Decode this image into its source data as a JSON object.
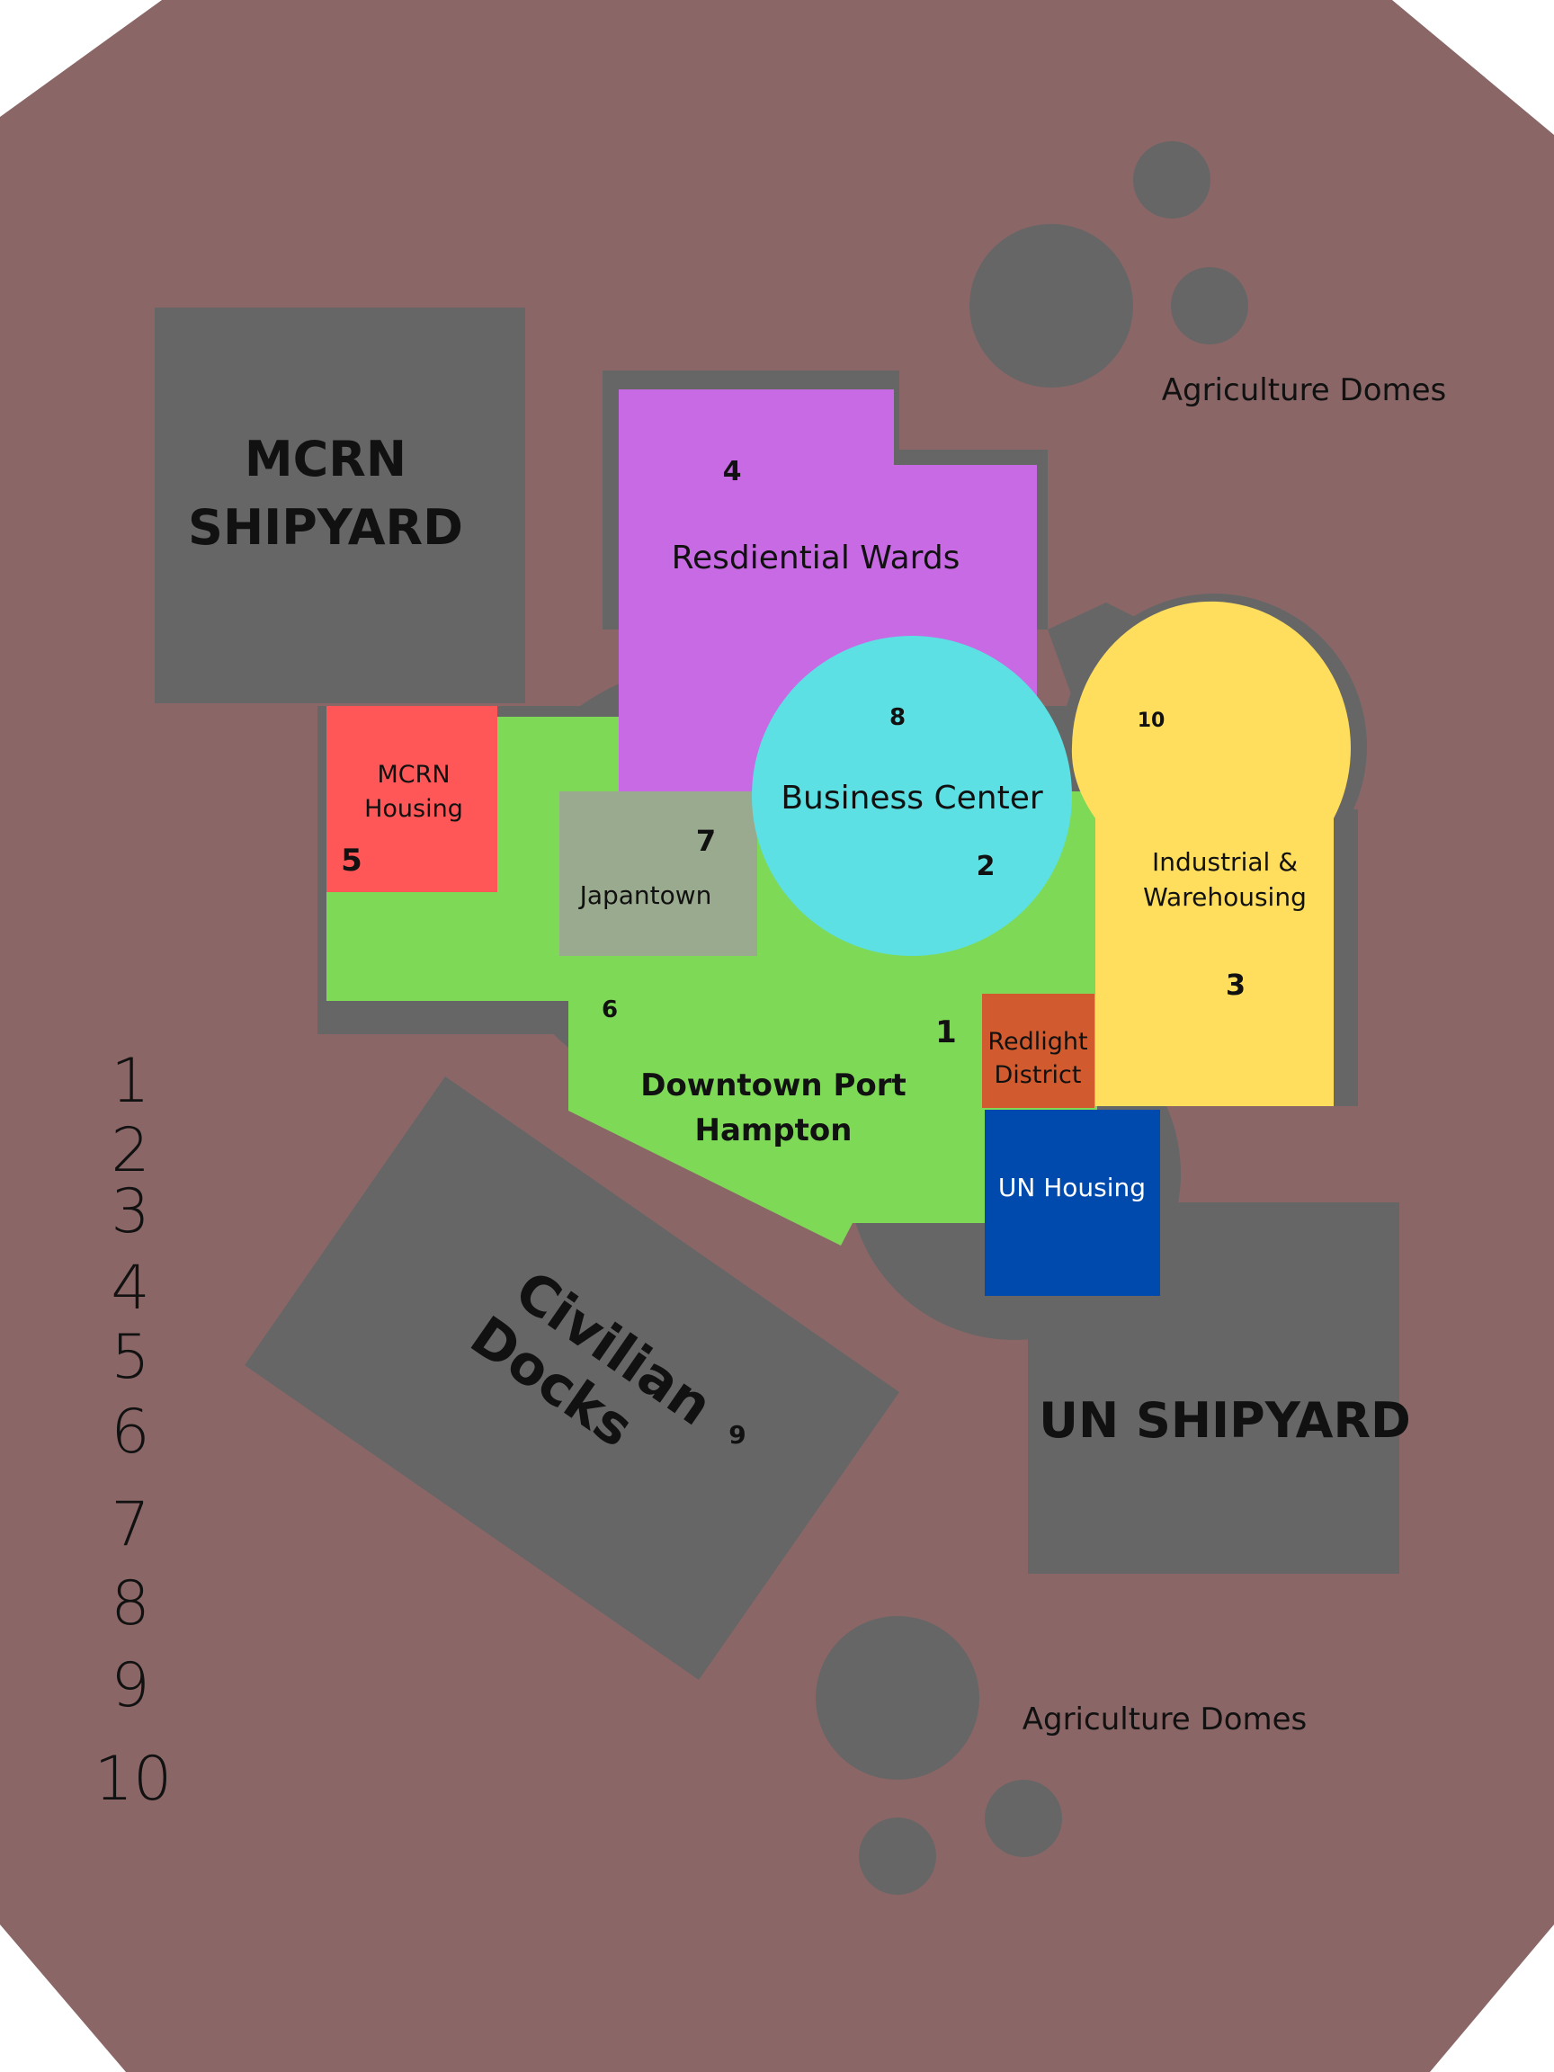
{
  "colors": {
    "page": "#ffffff",
    "station_hull": "#8a6766",
    "structure_gray": "#666666",
    "residential": "#c86ae4",
    "business": "#5ce0e3",
    "industrial": "#fede5c",
    "downtown": "#7ed957",
    "mcrn_housing": "#ff5757",
    "japantown": "#9aaa8e",
    "redlight": "#d15b2f",
    "un_housing": "#004aad",
    "text_dark": "#111111",
    "text_light": "#ffffff"
  },
  "areas": {
    "mcrn_shipyard": {
      "line1": "MCRN",
      "line2": "SHIPYARD"
    },
    "un_shipyard": {
      "label": "UN SHIPYARD"
    },
    "civilian_docks": {
      "line1": "Civilian",
      "line2": "Docks",
      "marker": "9"
    },
    "residential_wards": {
      "label": "Resdiential Wards",
      "marker": "4"
    },
    "business_center": {
      "label": "Business Center",
      "marker_top": "8",
      "marker_bottom": "2"
    },
    "industrial": {
      "line1": "Industrial &",
      "line2": "Warehousing",
      "marker_top": "10",
      "marker_bottom": "3"
    },
    "mcrn_housing": {
      "line1": "MCRN",
      "line2": "Housing",
      "marker": "5"
    },
    "japantown": {
      "label": "Japantown",
      "marker": "7"
    },
    "downtown": {
      "line1": "Downtown Port",
      "line2": "Hampton",
      "marker_left": "6",
      "marker_right": "1"
    },
    "redlight": {
      "line1": "Redlight",
      "line2": "District"
    },
    "un_housing": {
      "label": "UN Housing"
    },
    "agri_domes_top": {
      "label": "Agriculture Domes"
    },
    "agri_domes_bottom": {
      "label": "Agriculture Domes"
    }
  },
  "legend_numbers": [
    "1",
    "2",
    "3",
    "4",
    "5",
    "6",
    "7",
    "8",
    "9",
    "10"
  ]
}
